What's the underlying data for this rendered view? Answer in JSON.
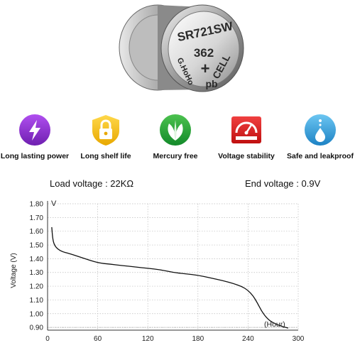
{
  "battery": {
    "face_line1": "SR721SW",
    "face_model": "362",
    "face_plus": "+",
    "face_line4": "CELL",
    "face_pb": "pb",
    "face_brand": "G.HoHo"
  },
  "features": [
    {
      "label": "Long lasting power",
      "icon": "lightning-icon",
      "color": "#8e2fd0"
    },
    {
      "label": "Long shelf life",
      "icon": "lock-icon",
      "color": "#f5c400"
    },
    {
      "label": "Mercury free",
      "icon": "leaf-icon",
      "color": "#25a83a"
    },
    {
      "label": "Voltage stability",
      "icon": "gauge-icon",
      "color": "#e02020"
    },
    {
      "label": "Safe and leakproof",
      "icon": "water-drop-icon",
      "color": "#3aa2dd"
    }
  ],
  "specs": {
    "load_voltage": "Load voltage : 22KΩ",
    "end_voltage": "End voltage : 0.9V"
  },
  "chart_data": {
    "type": "line",
    "ylabel": "Voltage (V)",
    "yunit": "V",
    "xunit": "(Hour)",
    "xlim": [
      0,
      300
    ],
    "ylim": [
      0.88,
      1.8
    ],
    "xticks": [
      0,
      60,
      120,
      180,
      240,
      300
    ],
    "yticks": [
      0.9,
      1.0,
      1.1,
      1.2,
      1.3,
      1.4,
      1.5,
      1.6,
      1.7,
      1.8
    ],
    "ytick_labels": [
      "0.90",
      "1.00",
      "1.10",
      "1.20",
      "1.30",
      "1.40",
      "1.50",
      "1.60",
      "1.70",
      "1.80"
    ],
    "grid": true,
    "series": [
      {
        "x": [
          5,
          6,
          8,
          12,
          18,
          25,
          35,
          45,
          60,
          75,
          90,
          105,
          120,
          135,
          150,
          165,
          180,
          195,
          210,
          222,
          232,
          240,
          246,
          251,
          256,
          262,
          268,
          275,
          282,
          288
        ],
        "y": [
          1.63,
          1.55,
          1.5,
          1.47,
          1.45,
          1.44,
          1.42,
          1.4,
          1.37,
          1.36,
          1.35,
          1.34,
          1.33,
          1.32,
          1.3,
          1.29,
          1.28,
          1.26,
          1.24,
          1.22,
          1.2,
          1.17,
          1.13,
          1.08,
          1.02,
          0.97,
          0.94,
          0.92,
          0.905,
          0.895
        ]
      }
    ],
    "reference_line": 0.9
  }
}
